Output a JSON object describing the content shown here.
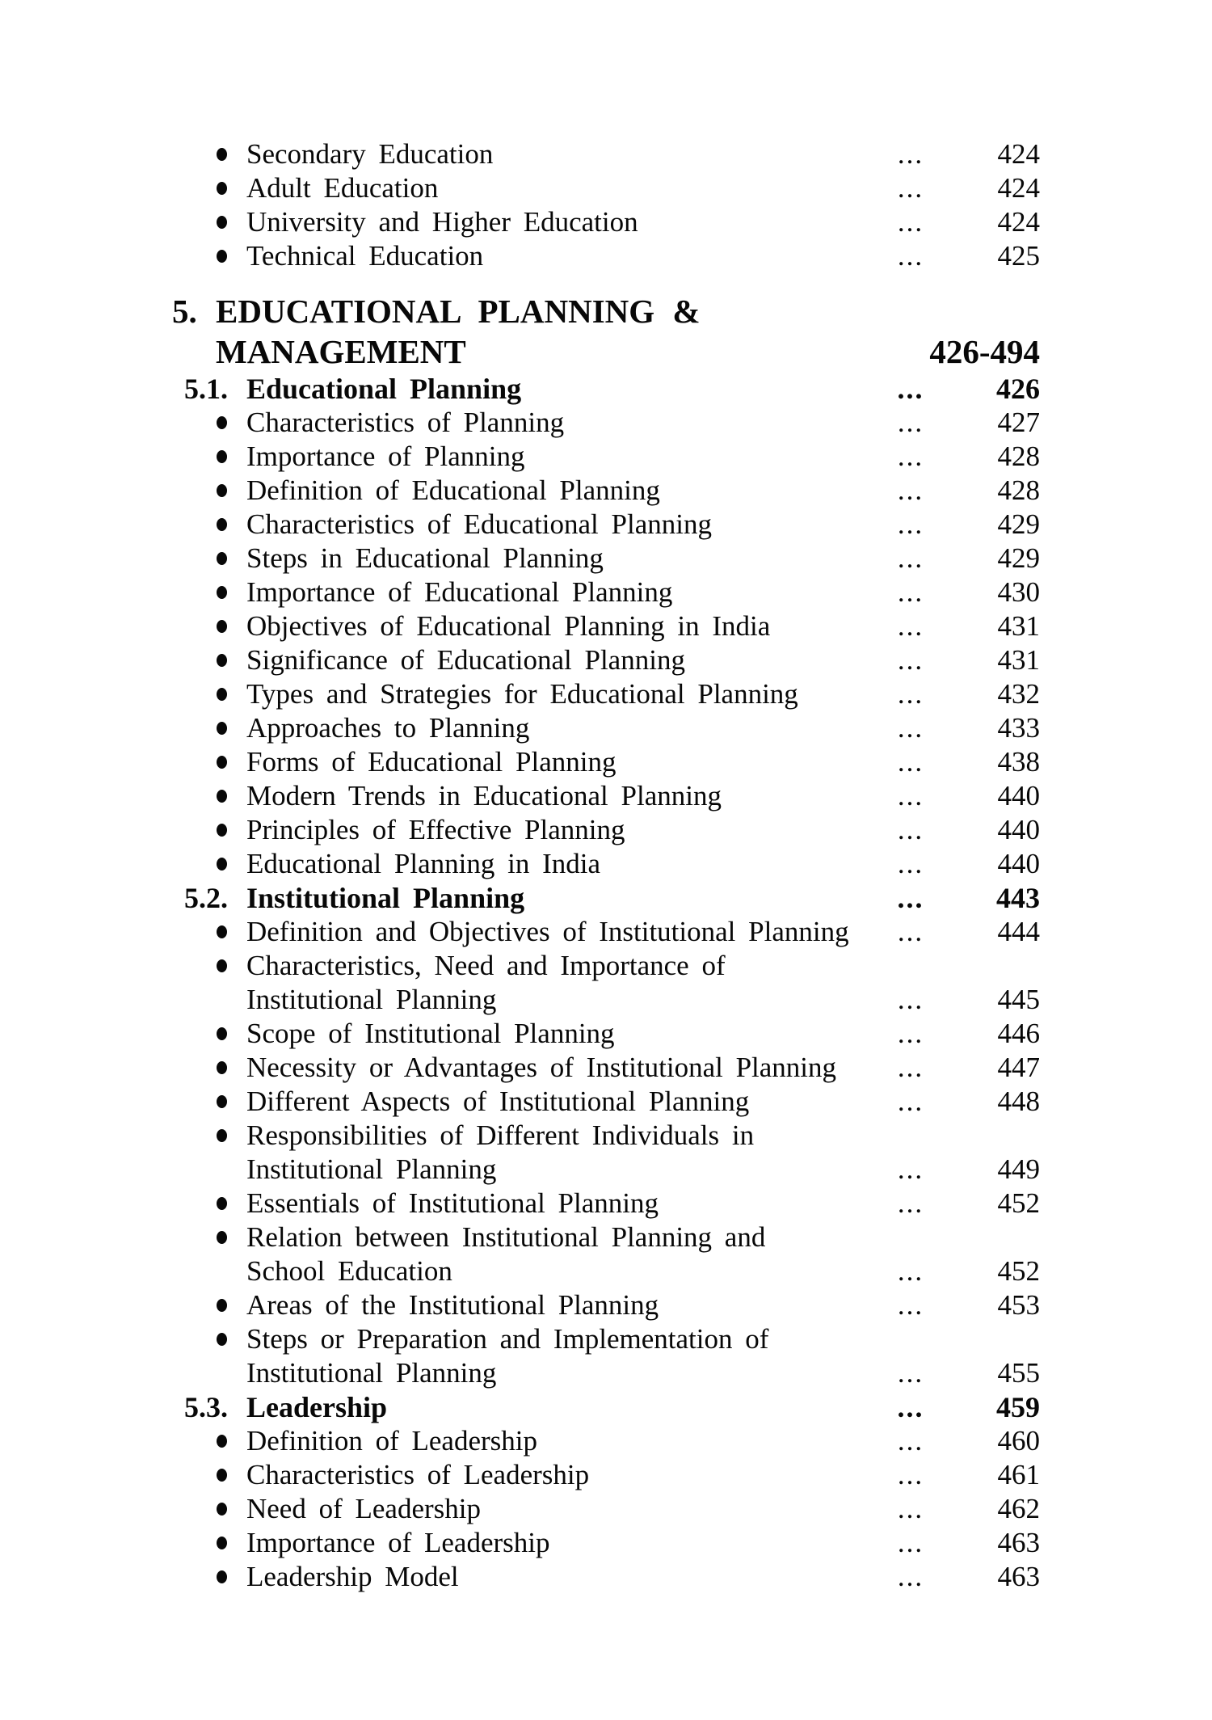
{
  "page": {
    "background": "#ffffff",
    "ink_color": "#080808"
  },
  "toc": {
    "dots_leader": "...",
    "rows": [
      {
        "style": "bullet",
        "label": "Secondary Education",
        "dots": true,
        "page": "424"
      },
      {
        "style": "bullet",
        "label": "Adult Education",
        "dots": true,
        "page": "424"
      },
      {
        "style": "bullet",
        "label": "University and Higher Education",
        "dots": true,
        "page": "424"
      },
      {
        "style": "bullet",
        "label": "Technical Education",
        "dots": true,
        "page": "425"
      },
      {
        "style": "section",
        "num": "5.",
        "label": "EDUCATIONAL PLANNING &"
      },
      {
        "style": "section_cont",
        "label": "MANAGEMENT",
        "page": "426-494"
      },
      {
        "style": "sub",
        "num": "5.1.",
        "label": "Educational Planning",
        "dots": true,
        "page": "426"
      },
      {
        "style": "bullet",
        "label": "Characteristics of Planning",
        "dots": true,
        "page": "427"
      },
      {
        "style": "bullet",
        "label": "Importance of Planning",
        "dots": true,
        "page": "428"
      },
      {
        "style": "bullet",
        "label": "Definition of Educational Planning",
        "dots": true,
        "page": "428"
      },
      {
        "style": "bullet",
        "label": "Characteristics of Educational Planning",
        "dots": true,
        "page": "429"
      },
      {
        "style": "bullet",
        "label": "Steps in Educational Planning",
        "dots": true,
        "page": "429"
      },
      {
        "style": "bullet",
        "label": "Importance of Educational Planning",
        "dots": true,
        "page": "430"
      },
      {
        "style": "bullet",
        "label": "Objectives of Educational Planning in India",
        "dots": true,
        "page": "431"
      },
      {
        "style": "bullet",
        "label": "Significance of Educational Planning",
        "dots": true,
        "page": "431"
      },
      {
        "style": "bullet",
        "label": "Types and Strategies for Educational Planning",
        "dots": true,
        "page": "432"
      },
      {
        "style": "bullet",
        "label": "Approaches to Planning",
        "dots": true,
        "page": "433"
      },
      {
        "style": "bullet",
        "label": "Forms of Educational Planning",
        "dots": true,
        "page": "438"
      },
      {
        "style": "bullet",
        "label": "Modern Trends in Educational Planning",
        "dots": true,
        "page": "440"
      },
      {
        "style": "bullet",
        "label": "Principles of Effective Planning",
        "dots": true,
        "page": "440"
      },
      {
        "style": "bullet",
        "label": "Educational Planning in India",
        "dots": true,
        "page": "440"
      },
      {
        "style": "sub",
        "num": "5.2.",
        "label": "Institutional Planning",
        "dots": true,
        "page": "443"
      },
      {
        "style": "bullet",
        "label": "Definition and Objectives of Institutional Planning",
        "dots": true,
        "page": "444"
      },
      {
        "style": "bullet",
        "label": "Characteristics, Need and Importance of"
      },
      {
        "style": "cont",
        "label": "Institutional Planning",
        "dots": true,
        "page": "445"
      },
      {
        "style": "bullet",
        "label": "Scope of Institutional Planning",
        "dots": true,
        "page": "446"
      },
      {
        "style": "bullet",
        "label": "Necessity or Advantages of Institutional Planning",
        "dots": true,
        "page": "447"
      },
      {
        "style": "bullet",
        "label": "Different Aspects of Institutional Planning",
        "dots": true,
        "page": "448"
      },
      {
        "style": "bullet",
        "label": "Responsibilities of Different Individuals in"
      },
      {
        "style": "cont",
        "label": "Institutional Planning",
        "dots": true,
        "page": "449"
      },
      {
        "style": "bullet",
        "label": "Essentials of Institutional Planning",
        "dots": true,
        "page": "452"
      },
      {
        "style": "bullet",
        "label": "Relation between Institutional Planning and"
      },
      {
        "style": "cont",
        "label": "School Education",
        "dots": true,
        "page": "452"
      },
      {
        "style": "bullet",
        "label": "Areas of the Institutional Planning",
        "dots": true,
        "page": "453"
      },
      {
        "style": "bullet",
        "label": "Steps or Preparation and Implementation of"
      },
      {
        "style": "cont",
        "label": "Institutional Planning",
        "dots": true,
        "page": "455"
      },
      {
        "style": "sub",
        "num": "5.3.",
        "label": "Leadership",
        "dots": true,
        "page": "459"
      },
      {
        "style": "bullet",
        "label": "Definition of Leadership",
        "dots": true,
        "page": "460"
      },
      {
        "style": "bullet",
        "label": "Characteristics of Leadership",
        "dots": true,
        "page": "461"
      },
      {
        "style": "bullet",
        "label": "Need of Leadership",
        "dots": true,
        "page": "462"
      },
      {
        "style": "bullet",
        "label": "Importance of Leadership",
        "dots": true,
        "page": "463"
      },
      {
        "style": "bullet",
        "label": "Leadership Model",
        "dots": true,
        "page": "463"
      }
    ]
  }
}
